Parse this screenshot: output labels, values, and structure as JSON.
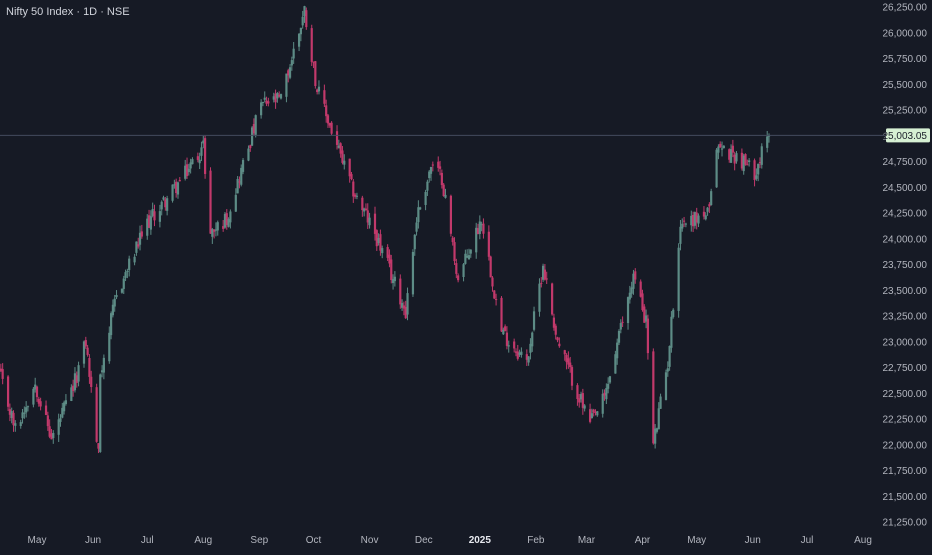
{
  "header": {
    "symbol": "Nifty 50 Index",
    "interval": "1D",
    "exchange": "NSE",
    "separator": "·"
  },
  "colors": {
    "background": "#161a25",
    "up": "#5d8c86",
    "down": "#c2396b",
    "price_line": "#434a5e",
    "last_price_bg": "#d6f0d3",
    "last_price_text": "#1b1f2a",
    "axis_text": "#b2b5be"
  },
  "chart_data": {
    "type": "candlestick",
    "title": "Nifty 50 Index · 1D · NSE",
    "ylim": [
      21200,
      26300
    ],
    "y_ticks": [
      "26,250.00",
      "26,000.00",
      "25,750.00",
      "25,500.00",
      "25,250.00",
      "25,000.00",
      "24,750.00",
      "24,500.00",
      "24,250.00",
      "24,000.00",
      "23,750.00",
      "23,500.00",
      "23,250.00",
      "23,000.00",
      "22,750.00",
      "22,500.00",
      "22,250.00",
      "22,000.00",
      "21,750.00",
      "21,500.00",
      "21,250.00"
    ],
    "y_tick_values": [
      26250,
      26000,
      25750,
      25500,
      25250,
      25000,
      24750,
      24500,
      24250,
      24000,
      23750,
      23500,
      23250,
      23000,
      22750,
      22500,
      22250,
      22000,
      21750,
      21500,
      21250
    ],
    "x_ticks": [
      {
        "label": "May",
        "date": "2024-05-01",
        "bold": false
      },
      {
        "label": "Jun",
        "date": "2024-06-01",
        "bold": false
      },
      {
        "label": "Jul",
        "date": "2024-07-01",
        "bold": false
      },
      {
        "label": "Aug",
        "date": "2024-08-01",
        "bold": false
      },
      {
        "label": "Sep",
        "date": "2024-09-01",
        "bold": false
      },
      {
        "label": "Oct",
        "date": "2024-10-01",
        "bold": false
      },
      {
        "label": "Nov",
        "date": "2024-11-01",
        "bold": false
      },
      {
        "label": "Dec",
        "date": "2024-12-01",
        "bold": false
      },
      {
        "label": "2025",
        "date": "2025-01-01",
        "bold": true
      },
      {
        "label": "Feb",
        "date": "2025-02-01",
        "bold": false
      },
      {
        "label": "Mar",
        "date": "2025-03-01",
        "bold": false
      },
      {
        "label": "Apr",
        "date": "2025-04-01",
        "bold": false
      },
      {
        "label": "May",
        "date": "2025-05-01",
        "bold": false
      },
      {
        "label": "Jun",
        "date": "2025-06-01",
        "bold": false
      },
      {
        "label": "Jul",
        "date": "2025-07-01",
        "bold": false
      },
      {
        "label": "Aug",
        "date": "2025-08-01",
        "bold": false
      }
    ],
    "last_price": 25003.05,
    "last_price_label": "25,003.05",
    "path_points": [
      [
        "2024-04-10",
        22700
      ],
      [
        "2024-04-19",
        22150
      ],
      [
        "2024-04-30",
        22600
      ],
      [
        "2024-05-09",
        22050
      ],
      [
        "2024-05-21",
        22550
      ],
      [
        "2024-05-28",
        23000
      ],
      [
        "2024-06-04",
        21900
      ],
      [
        "2024-06-05",
        22700
      ],
      [
        "2024-06-14",
        23450
      ],
      [
        "2024-07-01",
        24150
      ],
      [
        "2024-07-19",
        24550
      ],
      [
        "2024-08-01",
        24900
      ],
      [
        "2024-08-05",
        24050
      ],
      [
        "2024-08-14",
        24200
      ],
      [
        "2024-09-02",
        25300
      ],
      [
        "2024-09-13",
        25350
      ],
      [
        "2024-09-26",
        26220
      ],
      [
        "2024-10-03",
        25450
      ],
      [
        "2024-10-22",
        24500
      ],
      [
        "2024-11-04",
        24050
      ],
      [
        "2024-11-21",
        23300
      ],
      [
        "2024-11-27",
        24200
      ],
      [
        "2024-12-05",
        24700
      ],
      [
        "2024-12-11",
        24600
      ],
      [
        "2024-12-20",
        23600
      ],
      [
        "2025-01-02",
        24200
      ],
      [
        "2025-01-13",
        23100
      ],
      [
        "2025-01-27",
        22800
      ],
      [
        "2025-02-05",
        23750
      ],
      [
        "2025-02-13",
        23000
      ],
      [
        "2025-03-03",
        22200
      ],
      [
        "2025-03-11",
        22450
      ],
      [
        "2025-03-27",
        23650
      ],
      [
        "2025-04-03",
        23200
      ],
      [
        "2025-04-07",
        22000
      ],
      [
        "2025-04-15",
        22800
      ],
      [
        "2025-04-22",
        24150
      ],
      [
        "2025-05-08",
        24250
      ],
      [
        "2025-05-12",
        24900
      ],
      [
        "2025-05-23",
        24800
      ],
      [
        "2025-06-02",
        24650
      ],
      [
        "2025-06-10",
        25003.05
      ]
    ]
  }
}
